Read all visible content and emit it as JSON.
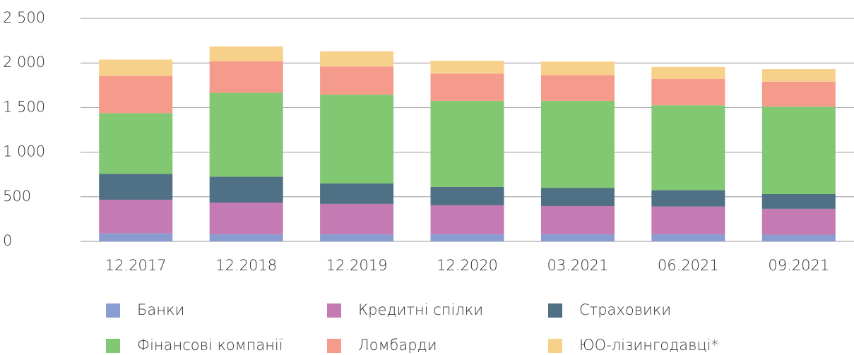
{
  "chart_data": {
    "type": "stacked_bar",
    "categories": [
      "12.2017",
      "12.2018",
      "12.2019",
      "12.2020",
      "03.2021",
      "06.2021",
      "09.2021"
    ],
    "series": [
      {
        "name": "Банки",
        "color": "#8a9dd1",
        "values": [
          90,
          80,
          80,
          80,
          80,
          80,
          75
        ]
      },
      {
        "name": "Кредитні спілки",
        "color": "#c47ab2",
        "values": [
          377,
          355,
          340,
          325,
          315,
          310,
          290
        ]
      },
      {
        "name": "Страховики",
        "color": "#4f7085",
        "values": [
          290,
          290,
          230,
          205,
          205,
          185,
          165
        ]
      },
      {
        "name": "Фінансові компанії",
        "color": "#82c873",
        "values": [
          680,
          940,
          995,
          965,
          975,
          950,
          980
        ]
      },
      {
        "name": "Ломбарди",
        "color": "#f59b8c",
        "values": [
          420,
          355,
          315,
          305,
          290,
          295,
          280
        ]
      },
      {
        "name": "ЮО-лізингодавці*",
        "color": "#f7d08a",
        "values": [
          180,
          165,
          170,
          145,
          150,
          135,
          140
        ]
      }
    ],
    "ylim": [
      0,
      2500
    ],
    "yticks": [
      0,
      500,
      {
        "value": 1000,
        "label": "1 000"
      },
      {
        "value": 1500,
        "label": "1 500"
      },
      {
        "value": 2000,
        "label": "2 000"
      },
      {
        "value": 2500,
        "label": "2 500"
      }
    ],
    "grid": true
  }
}
